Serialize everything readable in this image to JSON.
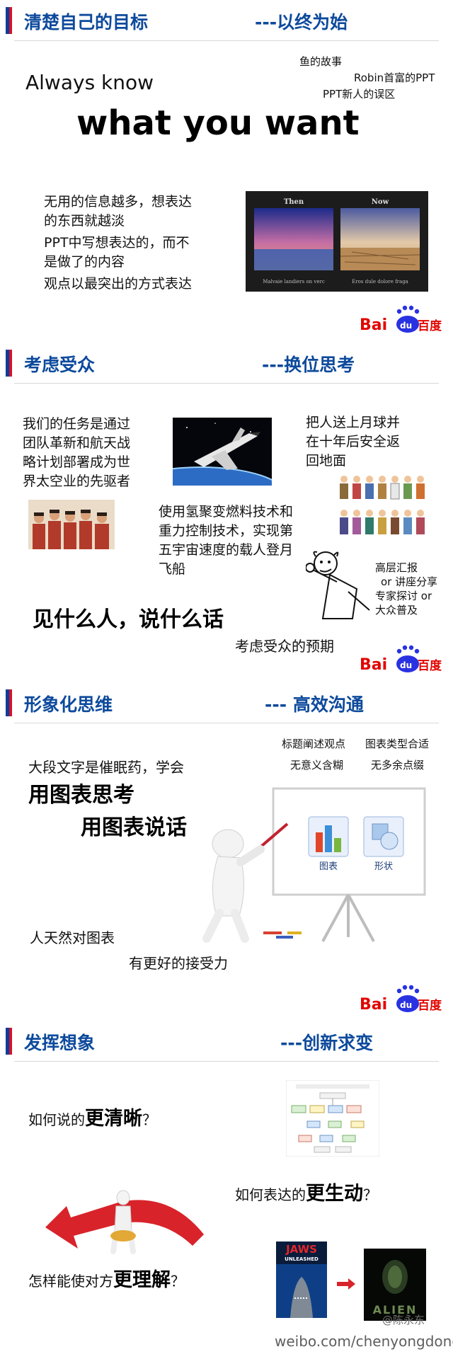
{
  "sections": [
    {
      "title": "清楚自己的目标",
      "subtitle": "---以终为始",
      "tags": [
        "鱼的故事",
        "Robin首富的PPT",
        "PPT新人的误区"
      ],
      "always_know": "Always know",
      "what_you_want": "what you want",
      "points": [
        "无用的信息越多，想表达",
        "的东西就越淡",
        "PPT中写想表达的，而不",
        "是做了的内容",
        "观点以最突出的方式表达"
      ],
      "photo": {
        "then_label": "Then",
        "now_label": "Now",
        "caption_left": "Malvaie landiers on verc",
        "caption_right": "Eros dule dolore fraga"
      }
    },
    {
      "title": "考虑受众",
      "subtitle": "---换位思考",
      "mission_lines": [
        "我们的任务是通过",
        "团队革新和航天战",
        "略计划部署成为世",
        "界太空业的先驱者"
      ],
      "moon_lines": [
        "把人送上月球并",
        "在十年后安全返",
        "回地面"
      ],
      "tech_lines": [
        "使用氢聚变燃料技术和",
        "重力控制技术，实现第",
        "五宇宙速度的载人登月",
        "飞船"
      ],
      "audience_lines": [
        "高层汇报",
        " or 讲座分享",
        "专家探讨  or",
        "大众普及"
      ],
      "slogan": "见什么人，说什么话",
      "expectation": "考虑受众的预期"
    },
    {
      "title": "形象化思维",
      "subtitle": "--- 高效沟通",
      "tips": [
        "标题阐述观点",
        "图表类型合适",
        "无意义含糊",
        "无多余点缀"
      ],
      "intro": "大段文字是催眠药，学会",
      "think": "用图表思考",
      "speak": "用图表说话",
      "board_labels": [
        "图表",
        "形状"
      ],
      "nature1": "人天然对图表",
      "nature2": "有更好的接受力"
    },
    {
      "title": "发挥想象",
      "subtitle": "---创新求变",
      "q1_prefix": "如何说的",
      "q1_emph": "更清晰",
      "q1_suffix": "？",
      "q2_prefix": "如何表达的",
      "q2_emph": "更生动",
      "q2_suffix": "？",
      "q3_prefix": "怎样能使对方",
      "q3_emph": "更理解",
      "q3_suffix": "？",
      "jaws_title": "JAWS",
      "jaws_sub": "UNLEASHED",
      "alien_title": "ALIEN"
    }
  ],
  "logo": {
    "bai": "Bai",
    "du": "du",
    "cn": "百度"
  },
  "watermark": {
    "handle": "@陈永东",
    "url": "weibo.com/chenyongdong"
  },
  "colors": {
    "header_blue": "#0d4a9c",
    "accent_red": "#d3132a",
    "baidu_blue": "#2932e1",
    "baidu_red": "#e10601"
  }
}
